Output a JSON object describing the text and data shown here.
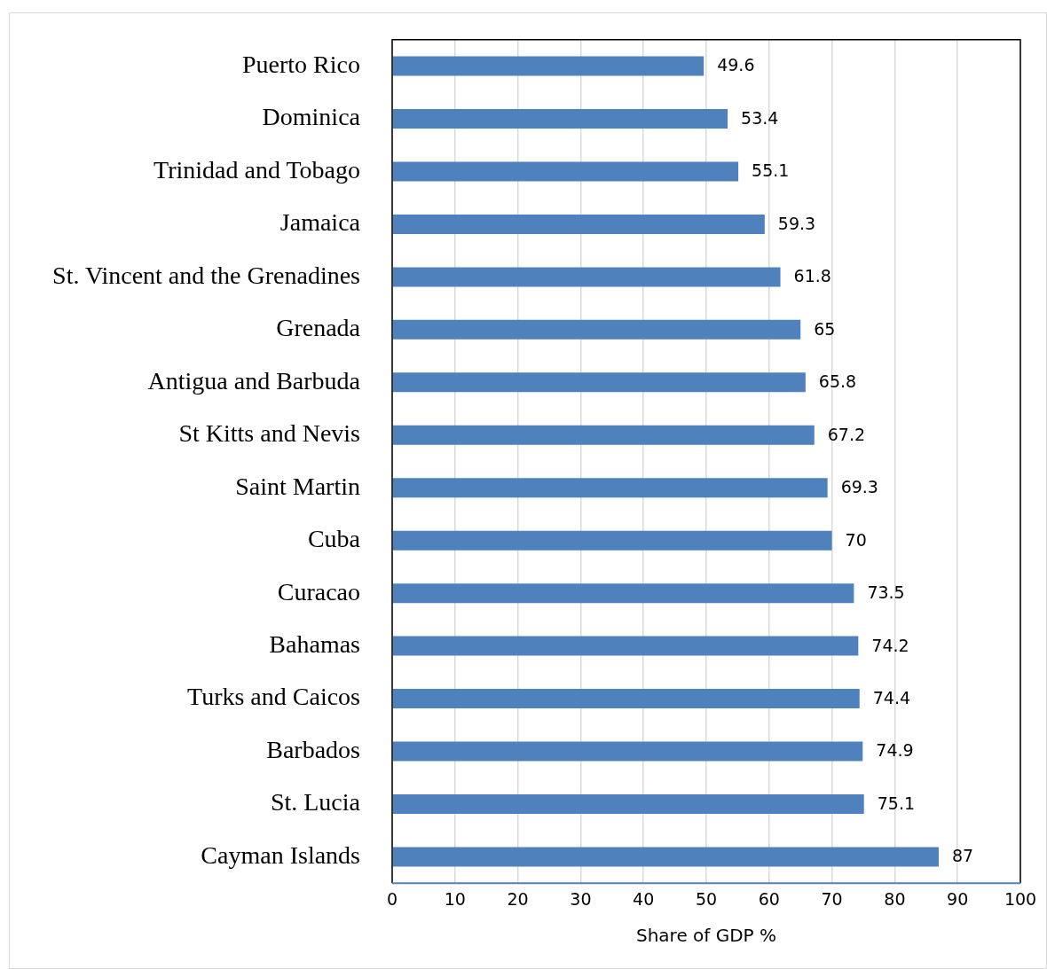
{
  "chart_data": {
    "type": "bar",
    "orientation": "horizontal",
    "xlabel": "Share of GDP %",
    "categories": [
      "Puerto Rico",
      "Dominica",
      "Trinidad and Tobago",
      "Jamaica",
      "St. Vincent and the Grenadines",
      "Grenada",
      "Antigua and Barbuda",
      "St Kitts and Nevis",
      "Saint Martin",
      "Cuba",
      "Curacao",
      "Bahamas",
      "Turks and Caicos",
      "Barbados",
      "St. Lucia",
      "Cayman Islands"
    ],
    "values": [
      49.6,
      53.4,
      55.1,
      59.3,
      61.8,
      65,
      65.8,
      67.2,
      69.3,
      70,
      73.5,
      74.2,
      74.4,
      74.9,
      75.1,
      87
    ],
    "color": "#4f81bd",
    "xlim": [
      0,
      100
    ],
    "xticks": [
      0,
      10,
      20,
      30,
      40,
      50,
      60,
      70,
      80,
      90,
      100
    ],
    "grid": "x",
    "data_labels": true,
    "legend": false
  }
}
